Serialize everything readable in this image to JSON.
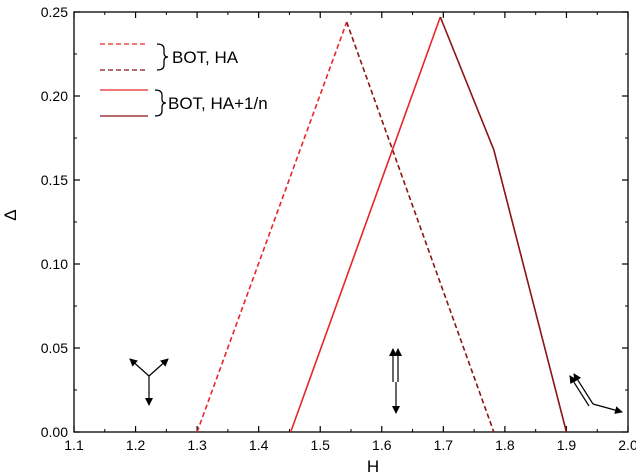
{
  "chart_data": {
    "type": "line",
    "xlabel": "H",
    "ylabel": "Δ",
    "xlim": [
      1.1,
      2.0
    ],
    "ylim": [
      0.0,
      0.25
    ],
    "x_ticks": [
      "1.1",
      "1.2",
      "1.3",
      "1.4",
      "1.5",
      "1.6",
      "1.7",
      "1.8",
      "1.9",
      "2.0"
    ],
    "y_ticks": [
      "0.00",
      "0.05",
      "0.10",
      "0.15",
      "0.20",
      "0.25"
    ],
    "series": [
      {
        "name": "BOT, HA",
        "style": "dashed",
        "segments": [
          {
            "color": "#e8262a",
            "points": [
              [
                1.3,
                0.0
              ],
              [
                1.543,
                0.244
              ]
            ]
          },
          {
            "color": "#8b1414",
            "points": [
              [
                1.543,
                0.244
              ],
              [
                1.782,
                0.0
              ]
            ]
          }
        ]
      },
      {
        "name": "BOT, HA+1/n",
        "style": "solid",
        "segments": [
          {
            "color": "#e8262a",
            "points": [
              [
                1.452,
                0.0
              ],
              [
                1.695,
                0.247
              ]
            ]
          },
          {
            "color": "#8b1414",
            "points": [
              [
                1.695,
                0.247
              ],
              [
                1.782,
                0.168
              ],
              [
                1.9,
                0.0
              ]
            ]
          }
        ]
      }
    ],
    "legend": {
      "placement": "top-left",
      "groups": [
        {
          "label": "BOT, HA",
          "style": "dashed",
          "colors": [
            "#e8262a",
            "#8b1414"
          ]
        },
        {
          "label": "BOT, HA+1/n",
          "style": "solid",
          "colors": [
            "#e8262a",
            "#8b1414"
          ]
        }
      ]
    },
    "grid": false
  }
}
